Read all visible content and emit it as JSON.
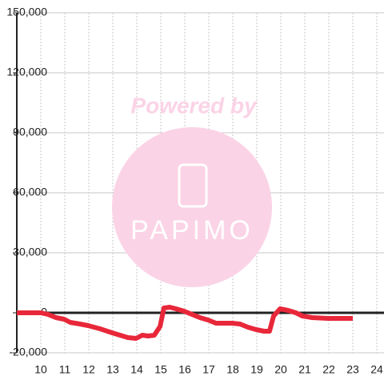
{
  "chart_data": {
    "type": "line",
    "watermark": [
      "Powered by",
      "PAPIMO"
    ],
    "x": [
      9,
      10,
      10.3,
      10.63,
      10.97,
      11.23,
      11.63,
      11.97,
      12.47,
      12.97,
      13.3,
      13.63,
      13.97,
      14.23,
      14.47,
      14.73,
      14.97,
      15.13,
      15.37,
      15.63,
      15.97,
      16.3,
      16.63,
      16.97,
      17.3,
      17.63,
      17.97,
      18.3,
      18.63,
      18.97,
      19.3,
      19.53,
      19.7,
      19.97,
      20.3,
      20.63,
      20.9,
      21.3,
      21.97,
      23
    ],
    "series": [
      {
        "color": "#e8283a",
        "values": [
          0,
          0,
          -800,
          -2400,
          -3200,
          -4800,
          -5600,
          -6400,
          -8000,
          -10000,
          -11200,
          -12400,
          -12800,
          -11200,
          -11600,
          -11200,
          -6800,
          2400,
          2800,
          2000,
          800,
          -800,
          -2400,
          -3600,
          -5200,
          -5200,
          -5200,
          -5600,
          -7200,
          -8400,
          -9200,
          -9200,
          -1600,
          2000,
          1200,
          0,
          -1600,
          -2400,
          -2800,
          -2800
        ]
      }
    ],
    "xlim": [
      9,
      24.3
    ],
    "xticks": [
      10,
      11,
      12,
      13,
      14,
      15,
      16,
      17,
      18,
      19,
      20,
      21,
      22,
      23,
      24
    ],
    "ylim": [
      -20000,
      150000
    ],
    "yticks": [
      {
        "value": -20000,
        "label": "-20,000"
      },
      0,
      {
        "value": 30000,
        "label": "30,000"
      },
      {
        "value": 60000,
        "label": "60,000"
      },
      {
        "value": 90000,
        "label": "90,000"
      },
      {
        "value": 120000,
        "label": "120,000"
      },
      {
        "value": 150000,
        "label": "150,000"
      }
    ],
    "grid": true
  }
}
